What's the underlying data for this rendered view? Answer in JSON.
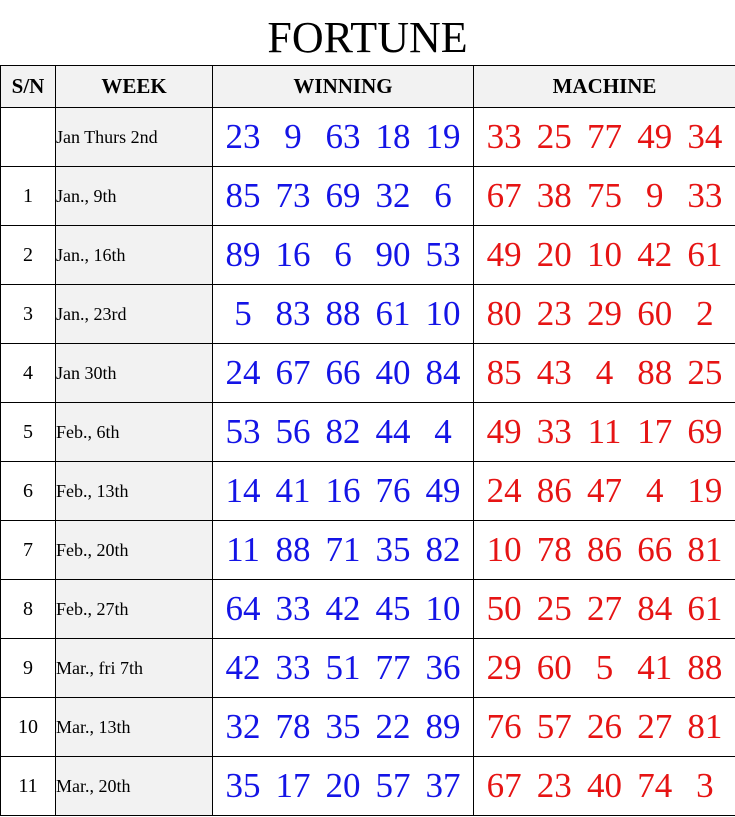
{
  "title": "FORTUNE",
  "colors": {
    "winning": "#1414e6",
    "machine": "#e61414",
    "header_bg": "#f2f2f2",
    "week_bg": "#f2f2f2"
  },
  "table": {
    "headers": [
      "S/N",
      "WEEK",
      "WINNING",
      "MACHINE"
    ],
    "rows": [
      {
        "sn": "",
        "week": "Jan Thurs 2nd",
        "winning": [
          "23",
          "9",
          "63",
          "18",
          "19"
        ],
        "machine": [
          "33",
          "25",
          "77",
          "49",
          "34"
        ]
      },
      {
        "sn": "1",
        "week": "Jan., 9th",
        "winning": [
          "85",
          "73",
          "69",
          "32",
          "6"
        ],
        "machine": [
          "67",
          "38",
          "75",
          "9",
          "33"
        ]
      },
      {
        "sn": "2",
        "week": "Jan., 16th",
        "winning": [
          "89",
          "16",
          "6",
          "90",
          "53"
        ],
        "machine": [
          "49",
          "20",
          "10",
          "42",
          "61"
        ]
      },
      {
        "sn": "3",
        "week": "Jan., 23rd",
        "winning": [
          "5",
          "83",
          "88",
          "61",
          "10"
        ],
        "machine": [
          "80",
          "23",
          "29",
          "60",
          "2"
        ]
      },
      {
        "sn": "4",
        "week": "Jan 30th",
        "winning": [
          "24",
          "67",
          "66",
          "40",
          "84"
        ],
        "machine": [
          "85",
          "43",
          "4",
          "88",
          "25"
        ]
      },
      {
        "sn": "5",
        "week": "Feb., 6th",
        "winning": [
          "53",
          "56",
          "82",
          "44",
          "4"
        ],
        "machine": [
          "49",
          "33",
          "11",
          "17",
          "69"
        ]
      },
      {
        "sn": "6",
        "week": "Feb., 13th",
        "winning": [
          "14",
          "41",
          "16",
          "76",
          "49"
        ],
        "machine": [
          "24",
          "86",
          "47",
          "4",
          "19"
        ]
      },
      {
        "sn": "7",
        "week": "Feb., 20th",
        "winning": [
          "11",
          "88",
          "71",
          "35",
          "82"
        ],
        "machine": [
          "10",
          "78",
          "86",
          "66",
          "81"
        ]
      },
      {
        "sn": "8",
        "week": "Feb., 27th",
        "winning": [
          "64",
          "33",
          "42",
          "45",
          "10"
        ],
        "machine": [
          "50",
          "25",
          "27",
          "84",
          "61"
        ]
      },
      {
        "sn": "9",
        "week": "Mar., fri 7th",
        "winning": [
          "42",
          "33",
          "51",
          "77",
          "36"
        ],
        "machine": [
          "29",
          "60",
          "5",
          "41",
          "88"
        ]
      },
      {
        "sn": "10",
        "week": "Mar., 13th",
        "winning": [
          "32",
          "78",
          "35",
          "22",
          "89"
        ],
        "machine": [
          "76",
          "57",
          "26",
          "27",
          "81"
        ]
      },
      {
        "sn": "11",
        "week": "Mar., 20th",
        "winning": [
          "35",
          "17",
          "20",
          "57",
          "37"
        ],
        "machine": [
          "67",
          "23",
          "40",
          "74",
          "3"
        ]
      }
    ]
  }
}
